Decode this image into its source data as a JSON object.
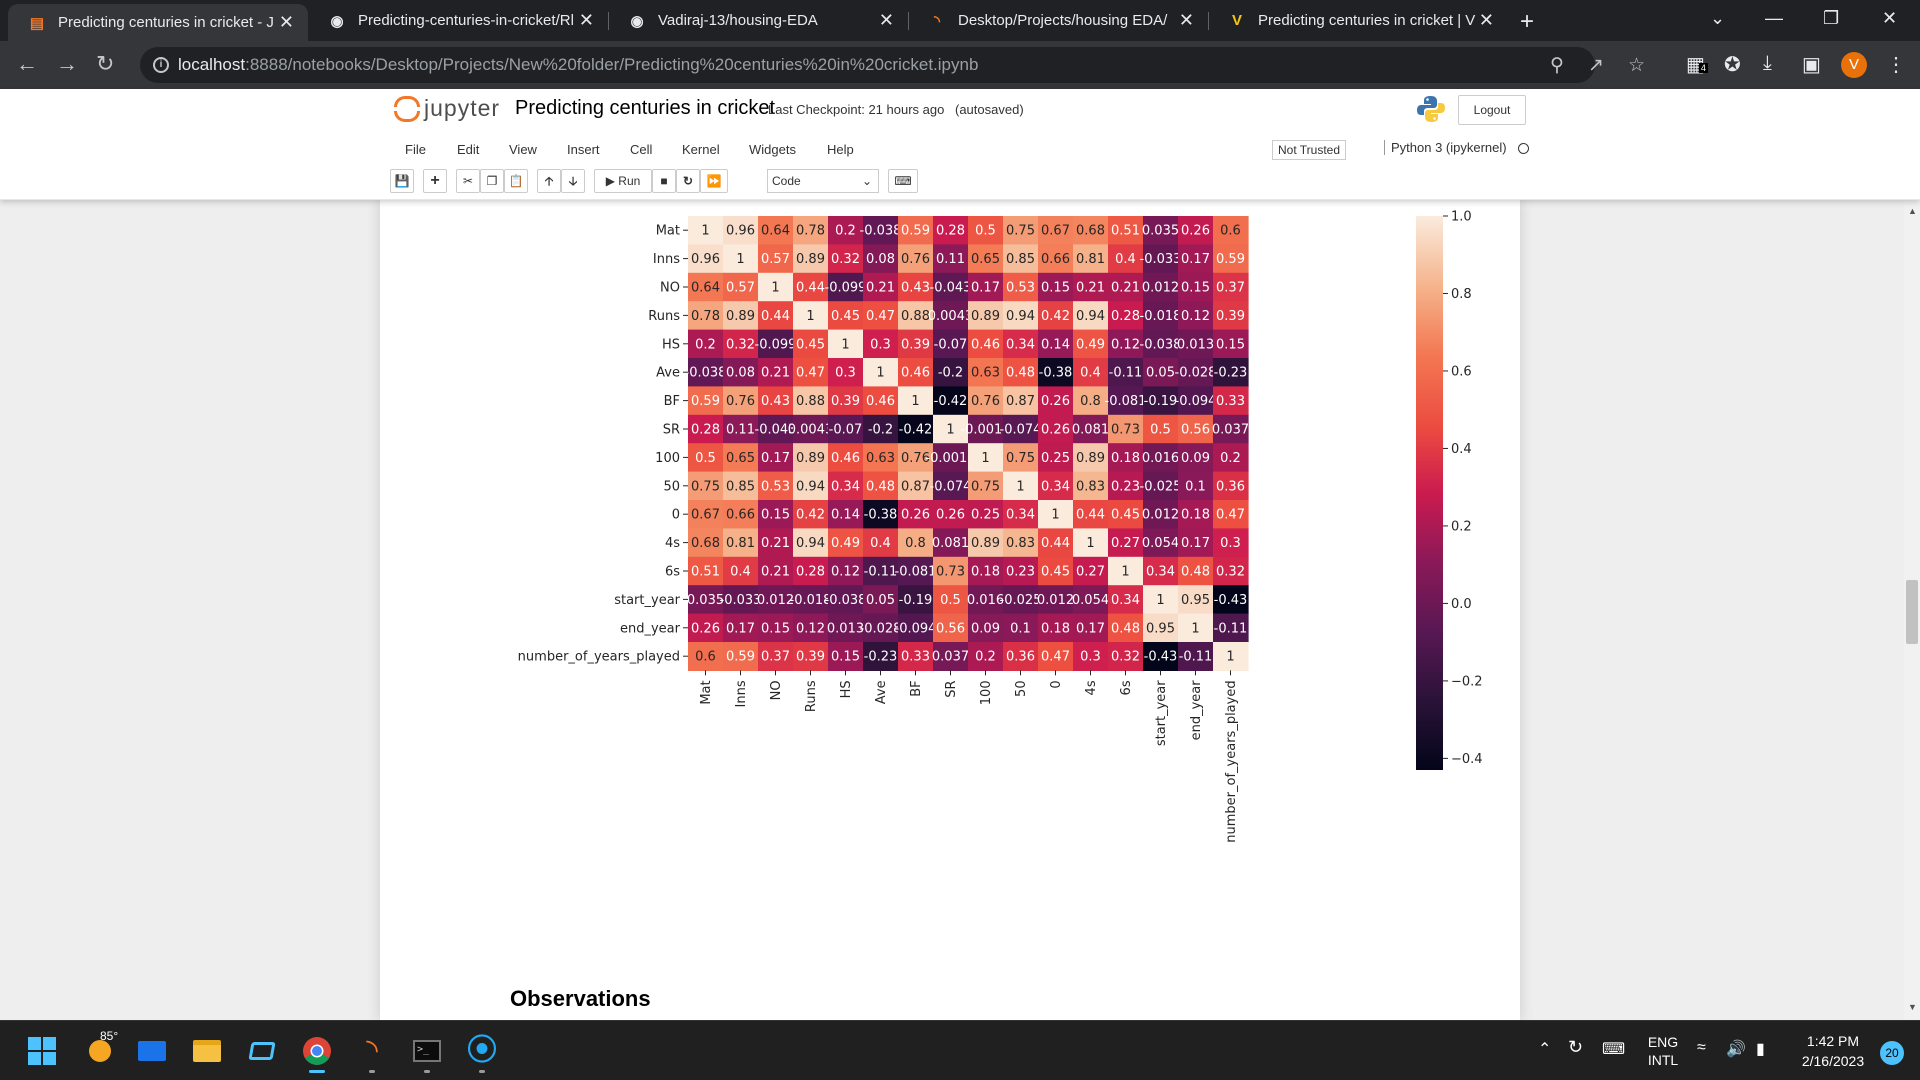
{
  "browser": {
    "tabs": [
      {
        "title": "Predicting centuries in cricket - J",
        "icon": "jupyter-icon",
        "active": true
      },
      {
        "title": "Predicting-centuries-in-cricket/Rl",
        "icon": "github-icon",
        "active": false
      },
      {
        "title": "Vadiraj-13/housing-EDA",
        "icon": "github-icon",
        "active": false
      },
      {
        "title": "Desktop/Projects/housing EDA/",
        "icon": "jupyter-icon",
        "active": false
      },
      {
        "title": "Predicting centuries in cricket | V",
        "icon": "v-icon",
        "active": false
      }
    ],
    "url_host": "localhost",
    "url_path": ":8888/notebooks/Desktop/Projects/New%20folder/Predicting%20centuries%20in%20cricket.ipynb",
    "avatar_letter": "V",
    "extension_badge": "4"
  },
  "jupyter": {
    "logo_text": "jupyter",
    "notebook_name": "Predicting centuries in cricket",
    "checkpoint": "Last Checkpoint: 21 hours ago",
    "autosave": "(autosaved)",
    "logout": "Logout",
    "menu": [
      "File",
      "Edit",
      "View",
      "Insert",
      "Cell",
      "Kernel",
      "Widgets",
      "Help"
    ],
    "trust": "Not Trusted",
    "kernel": "Python 3 (ipykernel)",
    "toolbar": {
      "run_label": "Run",
      "cell_type": "Code"
    }
  },
  "chart_data": {
    "type": "heatmap",
    "labels": [
      "Mat",
      "Inns",
      "NO",
      "Runs",
      "HS",
      "Ave",
      "BF",
      "SR",
      "100",
      "50",
      "0",
      "4s",
      "6s",
      "start_year",
      "end_year",
      "number_of_years_played"
    ],
    "matrix": [
      [
        "1",
        "0.96",
        "0.64",
        "0.78",
        "0.2",
        "-0.038",
        "0.59",
        "0.28",
        "0.5",
        "0.75",
        "0.67",
        "0.68",
        "0.51",
        "0.035",
        "0.26",
        "0.6"
      ],
      [
        "0.96",
        "1",
        "0.57",
        "0.89",
        "0.32",
        "0.08",
        "0.76",
        "0.11",
        "0.65",
        "0.85",
        "0.66",
        "0.81",
        "0.4",
        "-0.033",
        "0.17",
        "0.59"
      ],
      [
        "0.64",
        "0.57",
        "1",
        "0.44",
        "-0.099",
        "0.21",
        "0.43",
        "-0.043",
        "0.17",
        "0.53",
        "0.15",
        "0.21",
        "0.21",
        "0.012",
        "0.15",
        "0.37"
      ],
      [
        "0.78",
        "0.89",
        "0.44",
        "1",
        "0.45",
        "0.47",
        "0.88",
        "0.0043",
        "0.89",
        "0.94",
        "0.42",
        "0.94",
        "0.28",
        "-0.018",
        "0.12",
        "0.39"
      ],
      [
        "0.2",
        "0.32",
        "-0.099",
        "0.45",
        "1",
        "0.3",
        "0.39",
        "-0.07",
        "0.46",
        "0.34",
        "0.14",
        "0.49",
        "0.12",
        "-0.038",
        "0.013",
        "0.15"
      ],
      [
        "-0.038",
        "0.08",
        "0.21",
        "0.47",
        "0.3",
        "1",
        "0.46",
        "-0.2",
        "0.63",
        "0.48",
        "-0.38",
        "0.4",
        "-0.11",
        "0.05",
        "-0.028",
        "-0.23"
      ],
      [
        "0.59",
        "0.76",
        "0.43",
        "0.88",
        "0.39",
        "0.46",
        "1",
        "-0.42",
        "0.76",
        "0.87",
        "0.26",
        "0.8",
        "-0.081",
        "-0.19",
        "-0.094",
        "0.33"
      ],
      [
        "0.28",
        "0.11",
        "-0.043",
        "0.0043",
        "-0.07",
        "-0.2",
        "-0.42",
        "1",
        "-0.0019",
        "-0.074",
        "0.26",
        "0.081",
        "0.73",
        "0.5",
        "0.56",
        "0.037"
      ],
      [
        "0.5",
        "0.65",
        "0.17",
        "0.89",
        "0.46",
        "0.63",
        "0.76",
        "-0.0019",
        "1",
        "0.75",
        "0.25",
        "0.89",
        "0.18",
        "0.016",
        "0.09",
        "0.2"
      ],
      [
        "0.75",
        "0.85",
        "0.53",
        "0.94",
        "0.34",
        "0.48",
        "0.87",
        "-0.074",
        "0.75",
        "1",
        "0.34",
        "0.83",
        "0.23",
        "-0.025",
        "0.1",
        "0.36"
      ],
      [
        "0.67",
        "0.66",
        "0.15",
        "0.42",
        "0.14",
        "-0.38",
        "0.26",
        "0.26",
        "0.25",
        "0.34",
        "1",
        "0.44",
        "0.45",
        "0.012",
        "0.18",
        "0.47"
      ],
      [
        "0.68",
        "0.81",
        "0.21",
        "0.94",
        "0.49",
        "0.4",
        "0.8",
        "0.081",
        "0.89",
        "0.83",
        "0.44",
        "1",
        "0.27",
        "0.054",
        "0.17",
        "0.3"
      ],
      [
        "0.51",
        "0.4",
        "0.21",
        "0.28",
        "0.12",
        "-0.11",
        "-0.081",
        "0.73",
        "0.18",
        "0.23",
        "0.45",
        "0.27",
        "1",
        "0.34",
        "0.48",
        "0.32"
      ],
      [
        "0.035",
        "-0.033",
        "0.012",
        "-0.018",
        "-0.038",
        "0.05",
        "-0.19",
        "0.5",
        "0.016",
        "-0.025",
        "0.012",
        "0.054",
        "0.34",
        "1",
        "0.95",
        "-0.43"
      ],
      [
        "0.26",
        "0.17",
        "0.15",
        "0.12",
        "0.013",
        "-0.028",
        "-0.094",
        "0.56",
        "0.09",
        "0.1",
        "0.18",
        "0.17",
        "0.48",
        "0.95",
        "1",
        "-0.11"
      ],
      [
        "0.6",
        "0.59",
        "0.37",
        "0.39",
        "0.15",
        "-0.23",
        "0.33",
        "0.037",
        "0.2",
        "0.36",
        "0.47",
        "0.3",
        "0.32",
        "-0.43",
        "-0.11",
        "1"
      ]
    ],
    "colorbar": {
      "min": -0.43,
      "max": 1.0,
      "ticks": [
        "1.0",
        "0.8",
        "0.6",
        "0.4",
        "0.2",
        "0.0",
        "−0.2",
        "−0.4"
      ],
      "tick_values": [
        1.0,
        0.8,
        0.6,
        0.4,
        0.2,
        0.0,
        -0.2,
        -0.4
      ]
    },
    "colormap": "rocket",
    "annotations": true
  },
  "notebook": {
    "next_heading": "Observations"
  },
  "taskbar": {
    "weather": "85°",
    "lang_top": "ENG",
    "lang_bottom": "INTL",
    "time": "1:42 PM",
    "date": "2/16/2023",
    "notification_count": "20"
  }
}
